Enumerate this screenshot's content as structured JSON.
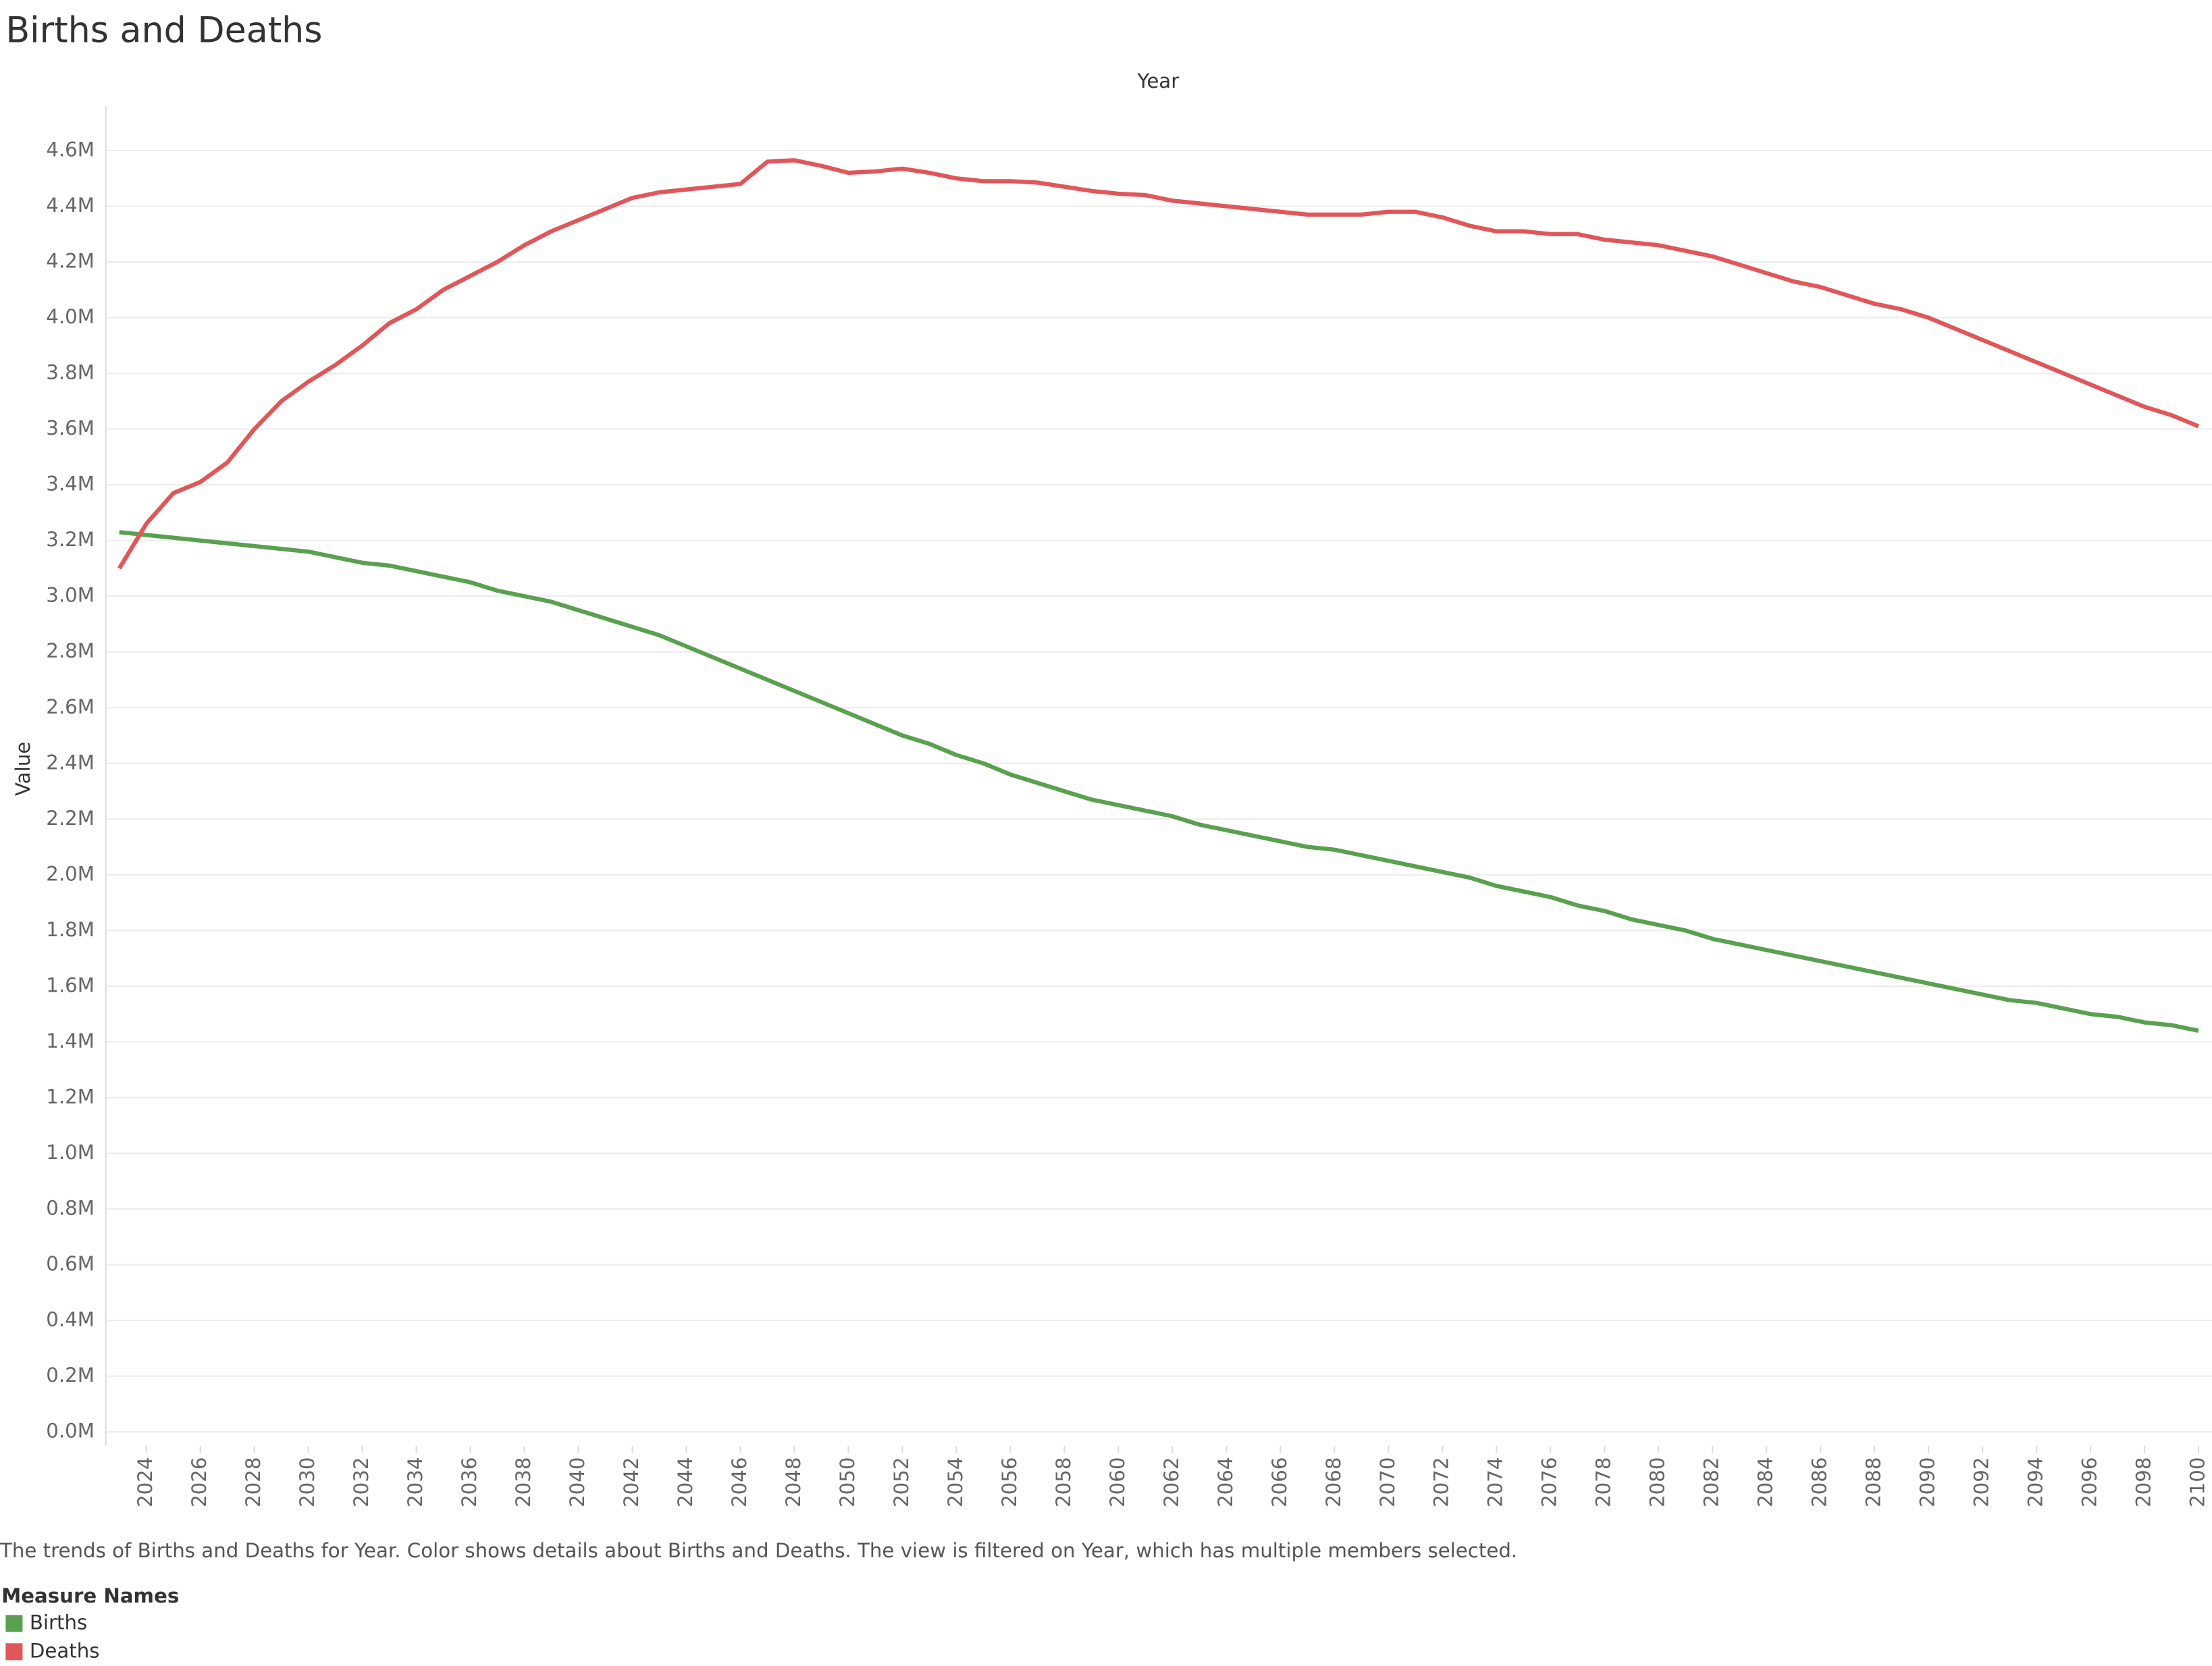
{
  "chart_data": {
    "type": "line",
    "title": "Births and Deaths",
    "x_label": "Year",
    "y_label": "Value",
    "caption": "The trends of Births and Deaths for Year.  Color shows details about Births and Deaths. The view is filtered on Year, which has multiple members selected.",
    "legend_title": "Measure Names",
    "x": [
      2023,
      2024,
      2025,
      2026,
      2027,
      2028,
      2029,
      2030,
      2031,
      2032,
      2033,
      2034,
      2035,
      2036,
      2037,
      2038,
      2039,
      2040,
      2041,
      2042,
      2043,
      2044,
      2045,
      2046,
      2047,
      2048,
      2049,
      2050,
      2051,
      2052,
      2053,
      2054,
      2055,
      2056,
      2057,
      2058,
      2059,
      2060,
      2061,
      2062,
      2063,
      2064,
      2065,
      2066,
      2067,
      2068,
      2069,
      2070,
      2071,
      2072,
      2073,
      2074,
      2075,
      2076,
      2077,
      2078,
      2079,
      2080,
      2081,
      2082,
      2083,
      2084,
      2085,
      2086,
      2087,
      2088,
      2089,
      2090,
      2091,
      2092,
      2093,
      2094,
      2095,
      2096,
      2097,
      2098,
      2099,
      2100
    ],
    "series": [
      {
        "name": "Births",
        "color": "#59a14f",
        "values": [
          3230000,
          3220000,
          3210000,
          3200000,
          3190000,
          3180000,
          3170000,
          3160000,
          3140000,
          3120000,
          3110000,
          3090000,
          3070000,
          3050000,
          3020000,
          3000000,
          2980000,
          2950000,
          2920000,
          2890000,
          2860000,
          2820000,
          2780000,
          2740000,
          2700000,
          2660000,
          2620000,
          2580000,
          2540000,
          2500000,
          2470000,
          2430000,
          2400000,
          2360000,
          2330000,
          2300000,
          2270000,
          2250000,
          2230000,
          2210000,
          2180000,
          2160000,
          2140000,
          2120000,
          2100000,
          2090000,
          2070000,
          2050000,
          2030000,
          2010000,
          1990000,
          1960000,
          1940000,
          1920000,
          1890000,
          1870000,
          1840000,
          1820000,
          1800000,
          1770000,
          1750000,
          1730000,
          1710000,
          1690000,
          1670000,
          1650000,
          1630000,
          1610000,
          1590000,
          1570000,
          1550000,
          1540000,
          1520000,
          1500000,
          1490000,
          1470000,
          1460000,
          1440000
        ]
      },
      {
        "name": "Deaths",
        "color": "#e15759",
        "values": [
          3100000,
          3260000,
          3370000,
          3410000,
          3480000,
          3600000,
          3700000,
          3770000,
          3830000,
          3900000,
          3980000,
          4030000,
          4100000,
          4150000,
          4200000,
          4260000,
          4310000,
          4350000,
          4390000,
          4430000,
          4450000,
          4460000,
          4470000,
          4480000,
          4560000,
          4565000,
          4545000,
          4520000,
          4525000,
          4535000,
          4520000,
          4500000,
          4490000,
          4490000,
          4485000,
          4470000,
          4455000,
          4445000,
          4440000,
          4420000,
          4410000,
          4400000,
          4390000,
          4380000,
          4370000,
          4370000,
          4370000,
          4380000,
          4380000,
          4360000,
          4330000,
          4310000,
          4310000,
          4300000,
          4300000,
          4280000,
          4270000,
          4260000,
          4240000,
          4220000,
          4190000,
          4160000,
          4130000,
          4110000,
          4080000,
          4050000,
          4030000,
          4000000,
          3960000,
          3920000,
          3880000,
          3840000,
          3800000,
          3760000,
          3720000,
          3680000,
          3650000,
          3610000
        ]
      }
    ],
    "xlim": [
      2022.5,
      2100.5
    ],
    "xticks": [
      2024,
      2026,
      2028,
      2030,
      2032,
      2034,
      2036,
      2038,
      2040,
      2042,
      2044,
      2046,
      2048,
      2050,
      2052,
      2054,
      2056,
      2058,
      2060,
      2062,
      2064,
      2066,
      2068,
      2070,
      2072,
      2074,
      2076,
      2078,
      2080,
      2082,
      2084,
      2086,
      2088,
      2090,
      2092,
      2094,
      2096,
      2098,
      2100
    ],
    "ylim": [
      -50000,
      4760000
    ],
    "yticks": [
      {
        "value": 0,
        "label": "0.0M"
      },
      {
        "value": 200000,
        "label": "0.2M"
      },
      {
        "value": 400000,
        "label": "0.4M"
      },
      {
        "value": 600000,
        "label": "0.6M"
      },
      {
        "value": 800000,
        "label": "0.8M"
      },
      {
        "value": 1000000,
        "label": "1.0M"
      },
      {
        "value": 1200000,
        "label": "1.2M"
      },
      {
        "value": 1400000,
        "label": "1.4M"
      },
      {
        "value": 1600000,
        "label": "1.6M"
      },
      {
        "value": 1800000,
        "label": "1.8M"
      },
      {
        "value": 2000000,
        "label": "2.0M"
      },
      {
        "value": 2200000,
        "label": "2.2M"
      },
      {
        "value": 2400000,
        "label": "2.4M"
      },
      {
        "value": 2600000,
        "label": "2.6M"
      },
      {
        "value": 2800000,
        "label": "2.8M"
      },
      {
        "value": 3000000,
        "label": "3.0M"
      },
      {
        "value": 3200000,
        "label": "3.2M"
      },
      {
        "value": 3400000,
        "label": "3.4M"
      },
      {
        "value": 3600000,
        "label": "3.6M"
      },
      {
        "value": 3800000,
        "label": "3.8M"
      },
      {
        "value": 4000000,
        "label": "4.0M"
      },
      {
        "value": 4200000,
        "label": "4.2M"
      },
      {
        "value": 4400000,
        "label": "4.4M"
      },
      {
        "value": 4600000,
        "label": "4.6M"
      }
    ],
    "grid": true
  }
}
